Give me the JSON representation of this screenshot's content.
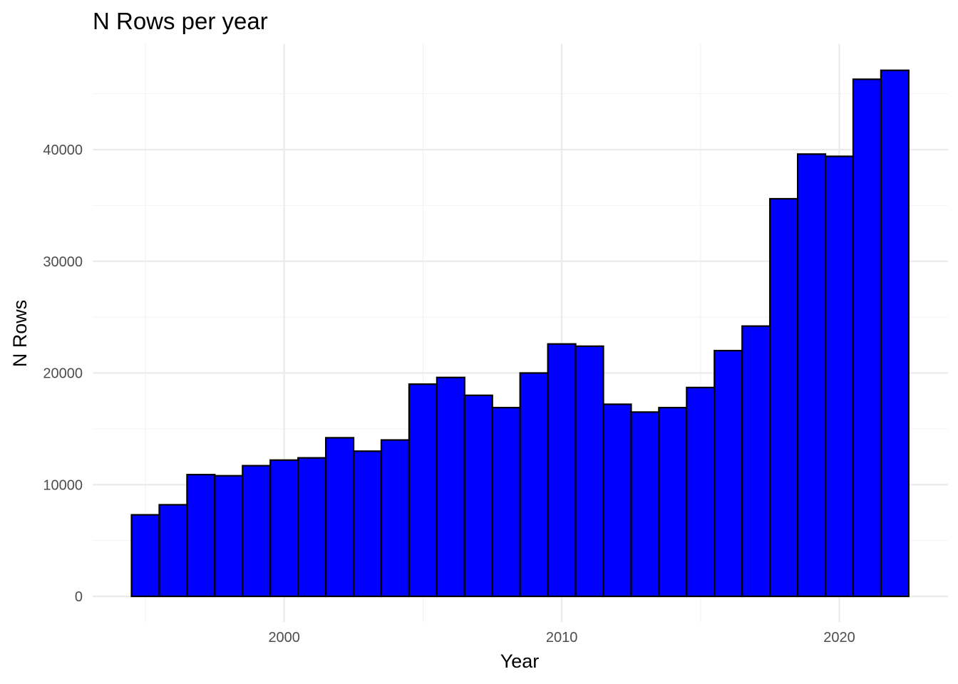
{
  "chart_data": {
    "type": "bar",
    "title": "N Rows per year",
    "xlabel": "Year",
    "ylabel": "N Rows",
    "x_ticks": [
      "2000",
      "2010",
      "2020"
    ],
    "y_ticks": [
      "0",
      "10000",
      "20000",
      "30000",
      "40000"
    ],
    "xlim": [
      1989.5,
      2026.5
    ],
    "ylim": [
      0,
      50000
    ],
    "grid": true,
    "fill_color": "#0000ff",
    "outline_color": "#000000",
    "categories": [
      1995,
      1996,
      1997,
      1998,
      1999,
      2000,
      2001,
      2002,
      2003,
      2004,
      2005,
      2006,
      2007,
      2008,
      2009,
      2010,
      2011,
      2012,
      2013,
      2014,
      2015,
      2016,
      2017,
      2018,
      2019,
      2020,
      2021,
      2022
    ],
    "values": [
      7300,
      8200,
      10900,
      10800,
      11700,
      12200,
      12400,
      14200,
      13000,
      14000,
      19000,
      19600,
      18000,
      16900,
      20000,
      22600,
      22400,
      17200,
      16500,
      16900,
      18700,
      22000,
      24200,
      35600,
      39600,
      39400,
      46300,
      47100
    ]
  }
}
